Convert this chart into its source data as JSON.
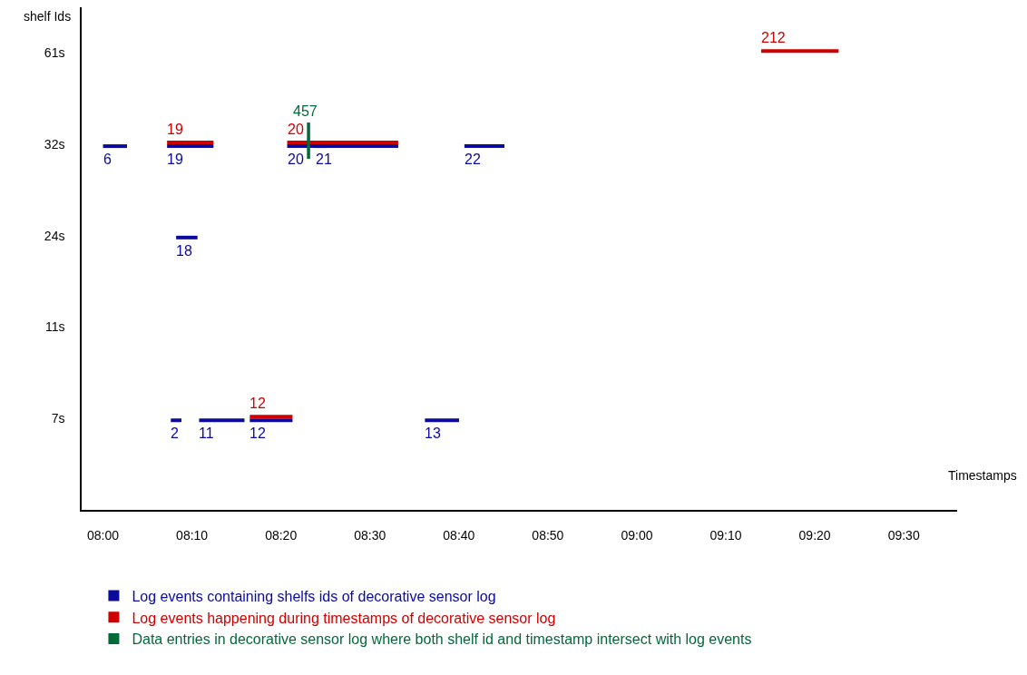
{
  "chart_data": {
    "type": "bar",
    "orientation": "horizontal",
    "xlabel": "Timestamps",
    "ylabel": "shelf Ids",
    "categories": [
      "61s",
      "32s",
      "24s",
      "11s",
      "7s"
    ],
    "xlim": [
      7.96,
      9.6
    ],
    "xticks": [
      {
        "value": 8,
        "label": "08:00"
      },
      {
        "value": 8.1667,
        "label": "08:10"
      },
      {
        "value": 8.3333,
        "label": "08:20"
      },
      {
        "value": 8.5,
        "label": "08:30"
      },
      {
        "value": 8.6667,
        "label": "08:40"
      },
      {
        "value": 8.8333,
        "label": "08:50"
      },
      {
        "value": 9,
        "label": "09:00"
      },
      {
        "value": 9.1667,
        "label": "09:10"
      },
      {
        "value": 9.3333,
        "label": "09:20"
      },
      {
        "value": 9.5,
        "label": "09:30"
      }
    ],
    "grid": false,
    "legend": "bottom",
    "series": [
      {
        "name": "Log events containing shelfs ids of decorative sensor log",
        "color": "#0a0a9c",
        "base": [
          null,
          8.0,
          8.137,
          null,
          8.127
        ],
        "values": [
          null,
          0.045,
          0.04,
          null,
          0.02
        ]
      },
      {
        "color": "#0a0a9c",
        "base": [
          null,
          8.12,
          null,
          null,
          8.18
        ],
        "values": [
          null,
          0.087,
          null,
          null,
          0.085
        ]
      },
      {
        "color": "#0a0a9c",
        "base": [
          null,
          8.345,
          null,
          null,
          8.275
        ],
        "values": [
          null,
          0.208,
          null,
          null,
          0.08
        ]
      },
      {
        "color": "#0a0a9c",
        "base": [
          null,
          8.398,
          null,
          null,
          8.603
        ],
        "values": [
          null,
          0.02,
          null,
          null,
          0.064
        ]
      },
      {
        "color": "#0a0a9c",
        "base": [
          null,
          8.677,
          null,
          null,
          null
        ],
        "values": [
          null,
          0.075,
          null,
          null,
          null
        ]
      },
      {
        "name": "Log events happening during timestamps of decorative sensor log",
        "color": "#d00000",
        "base": [
          9.233,
          8.12,
          null,
          null,
          8.275
        ],
        "values": [
          0.145,
          0.087,
          null,
          null,
          0.08
        ]
      },
      {
        "color": "#d00000",
        "base": [
          null,
          8.345,
          null,
          null,
          null
        ],
        "values": [
          null,
          0.208,
          null,
          null,
          null
        ]
      },
      {
        "name": "Data entries in decorative sensor log where both shelf id and timestamp intersect with log events",
        "color": "#006a3a",
        "base": [
          null,
          8.382,
          null,
          null,
          null
        ],
        "values": [
          null,
          0.006,
          null,
          null,
          null
        ]
      }
    ],
    "annotations": [
      {
        "text": "6",
        "x": 8.0,
        "y": "32s"
      },
      {
        "text": "19",
        "x": 8.12,
        "y": "32s"
      },
      {
        "text": "20",
        "x": 8.345,
        "y": "32s"
      },
      {
        "text": "21",
        "x": 8.398,
        "y": "32s"
      },
      {
        "text": "22",
        "x": 8.677,
        "y": "32s"
      },
      {
        "text": "18",
        "x": 8.137,
        "y": "24s"
      },
      {
        "text": "2",
        "x": 8.127,
        "y": "7s"
      },
      {
        "text": "11",
        "x": 8.18,
        "y": "7s"
      },
      {
        "text": "12",
        "x": 8.275,
        "y": "7s"
      },
      {
        "text": "13",
        "x": 8.603,
        "y": "7s"
      },
      {
        "text": "212",
        "x": 9.233,
        "y": "61s"
      },
      {
        "text": "19",
        "x": 8.12,
        "y": "32s"
      },
      {
        "text": "20",
        "x": 8.345,
        "y": "32s"
      },
      {
        "text": "12",
        "x": 8.275,
        "y": "7s"
      },
      {
        "text": "457",
        "x": 8.382,
        "y": "32s"
      }
    ]
  }
}
